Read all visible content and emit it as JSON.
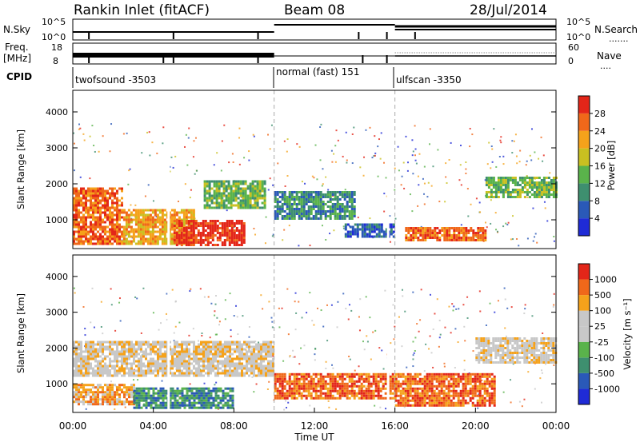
{
  "header": {
    "title": "Rankin Inlet (fitACF)",
    "beam": "Beam 08",
    "date": "28/Jul/2014"
  },
  "top_panel": {
    "left_label": "N.Sky",
    "right_label": "N.Search",
    "left_ticks": [
      "10^5",
      "10^0"
    ],
    "right_ticks": [
      "10^5",
      "10^0"
    ]
  },
  "freq_panel": {
    "left_label_1": "Freq.",
    "left_label_2": "[MHz]",
    "right_label": "Nave",
    "left_ticks": [
      "18",
      "8"
    ],
    "right_ticks": [
      "60",
      "0"
    ]
  },
  "cpid": {
    "label": "CPID",
    "segments": [
      {
        "name": "twofsound -3503",
        "start_hour": 0,
        "end_hour": 10
      },
      {
        "name": "normal (fast) 151",
        "start_hour": 10,
        "end_hour": 16
      },
      {
        "name": "ulfscan -3350",
        "start_hour": 16,
        "end_hour": 24
      }
    ]
  },
  "colors": {
    "power": [
      "#1f2bd6",
      "#2a59b8",
      "#3e8f6f",
      "#5ab34b",
      "#c9c021",
      "#f5a21b",
      "#f0681a",
      "#e32619"
    ],
    "velocity": [
      "#e32619",
      "#f0681a",
      "#f5a21b",
      "#c8c8c8",
      "#c8c8c8",
      "#5ab34b",
      "#3e8f6f",
      "#2a59b8",
      "#1f2bd6"
    ]
  },
  "chart_data": [
    {
      "type": "heatmap",
      "name": "power",
      "ylabel": "Slant Range [km]",
      "xlabel": "",
      "xlim": [
        0,
        24
      ],
      "ylim": [
        200,
        4600
      ],
      "yticks": [
        "1000",
        "2000",
        "3000",
        "4000"
      ],
      "colorbar_label": "Power [dB]",
      "colorbar_ticks": [
        "4",
        "8",
        "12",
        "16",
        "20",
        "24",
        "28"
      ],
      "regions": [
        {
          "x": [
            0.0,
            2.5
          ],
          "y": [
            300,
            1900
          ],
          "level": 6
        },
        {
          "x": [
            2.5,
            6.0
          ],
          "y": [
            300,
            1300
          ],
          "level": 5
        },
        {
          "x": [
            5.0,
            8.5
          ],
          "y": [
            300,
            1000
          ],
          "level": 7
        },
        {
          "x": [
            6.5,
            9.5
          ],
          "y": [
            1300,
            2100
          ],
          "level": 3
        },
        {
          "x": [
            10.0,
            14.0
          ],
          "y": [
            1000,
            1800
          ],
          "level": 2
        },
        {
          "x": [
            13.5,
            16.0
          ],
          "y": [
            500,
            900
          ],
          "level": 1
        },
        {
          "x": [
            16.5,
            20.5
          ],
          "y": [
            400,
            800
          ],
          "level": 6
        },
        {
          "x": [
            20.5,
            24.0
          ],
          "y": [
            1600,
            2200
          ],
          "level": 3
        }
      ]
    },
    {
      "type": "heatmap",
      "name": "velocity",
      "ylabel": "Slant Range [km]",
      "xlabel": "Time UT",
      "xlim": [
        0,
        24
      ],
      "ylim": [
        200,
        4600
      ],
      "yticks": [
        "1000",
        "2000",
        "3000",
        "4000"
      ],
      "xticks": [
        "00:00",
        "04:00",
        "08:00",
        "12:00",
        "16:00",
        "20:00",
        "00:00"
      ],
      "colorbar_label": "Velocity [m s⁻¹]",
      "colorbar_ticks": [
        "1000",
        "500",
        "100",
        "25",
        "-25",
        "-100",
        "-500",
        "-1000"
      ],
      "regions": [
        {
          "x": [
            0.0,
            3.0
          ],
          "y": [
            400,
            1000
          ],
          "level": 2
        },
        {
          "x": [
            0.0,
            10.0
          ],
          "y": [
            1200,
            2200
          ],
          "level": 3
        },
        {
          "x": [
            3.0,
            8.0
          ],
          "y": [
            300,
            900
          ],
          "level": 6
        },
        {
          "x": [
            10.0,
            16.0
          ],
          "y": [
            600,
            1300
          ],
          "level": 1
        },
        {
          "x": [
            16.0,
            21.0
          ],
          "y": [
            400,
            1300
          ],
          "level": 1
        },
        {
          "x": [
            20.0,
            24.0
          ],
          "y": [
            1600,
            2300
          ],
          "level": 3
        }
      ]
    }
  ]
}
